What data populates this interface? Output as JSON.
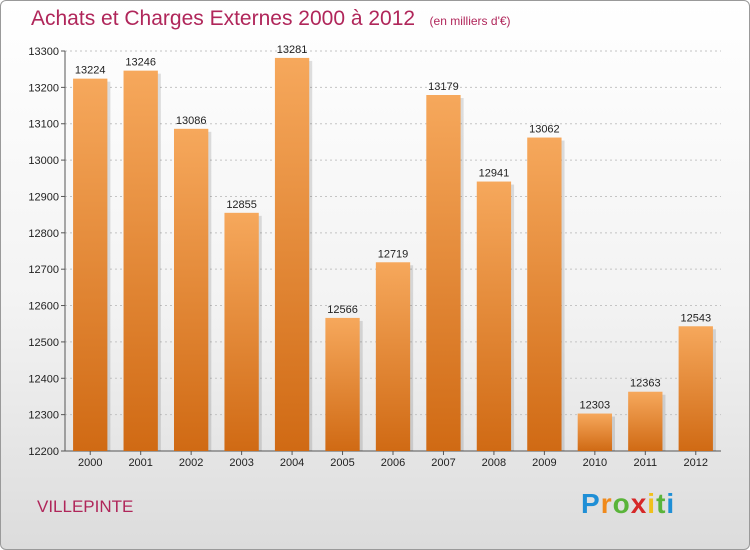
{
  "title": "Achats et Charges Externes 2000 à 2012",
  "unit_note": "(en milliers d'€)",
  "city": "VILLEPINTE",
  "brand": {
    "letters": [
      "P",
      "r",
      "o",
      "x",
      "i",
      "t",
      "i"
    ],
    "colors": [
      "#1f8fd6",
      "#f08a1c",
      "#5ab43a",
      "#d62828",
      "#f0c01c",
      "#5ab43a",
      "#1f8fd6"
    ]
  },
  "colors": {
    "bar_top": "#f6a85c",
    "bar_bottom": "#d06a14",
    "title": "#b0265a"
  },
  "chart_data": {
    "type": "bar",
    "title": "Achats et Charges Externes 2000 à 2012",
    "categories": [
      "2000",
      "2001",
      "2002",
      "2003",
      "2004",
      "2005",
      "2006",
      "2007",
      "2008",
      "2009",
      "2010",
      "2011",
      "2012"
    ],
    "values": [
      13224,
      13246,
      13086,
      12855,
      13281,
      12566,
      12719,
      13179,
      12941,
      13062,
      12303,
      12363,
      12543
    ],
    "value_labels": [
      "13224",
      "13246",
      "13086",
      "12855",
      "13281",
      "12566",
      "12719",
      "13179",
      "12941",
      "13062",
      "12303",
      "12363",
      "12543"
    ],
    "ylim": [
      12200,
      13300
    ],
    "yticks": [
      12200,
      12300,
      12400,
      12500,
      12600,
      12700,
      12800,
      12900,
      13000,
      13100,
      13200,
      13300
    ],
    "ytick_labels": [
      "12200",
      "12300",
      "12400",
      "12500",
      "12600",
      "12700",
      "12800",
      "12900",
      "13000",
      "13100",
      "13200",
      "13300"
    ],
    "xlabel": "",
    "ylabel": "",
    "grid": true
  }
}
